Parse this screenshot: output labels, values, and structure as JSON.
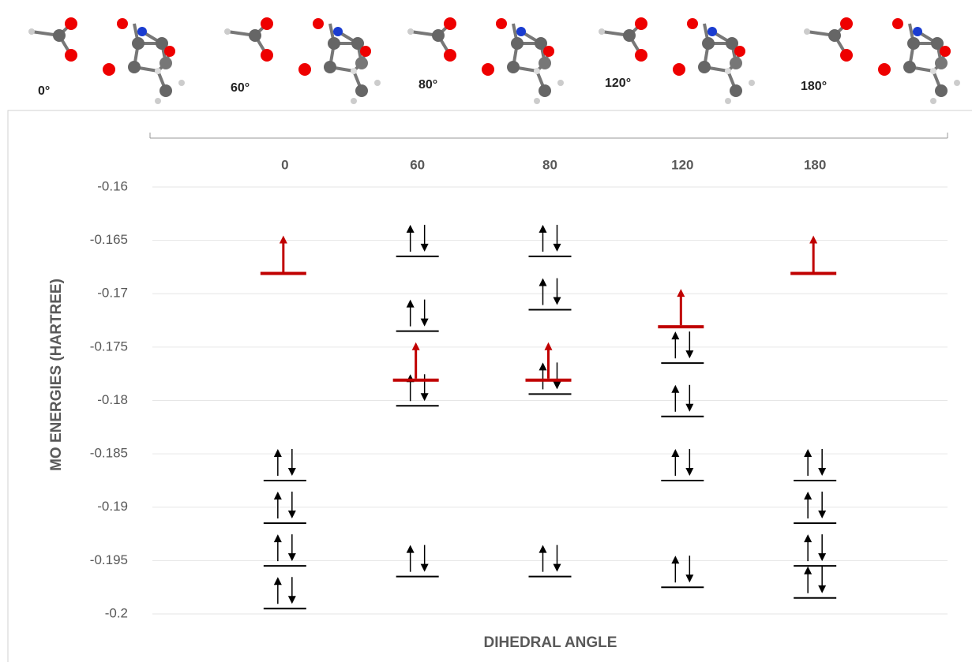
{
  "molecule_labels": [
    "0°",
    "60°",
    "80°",
    "120°",
    "180°"
  ],
  "chart_data": {
    "type": "energy-levels",
    "x_label": "DIHEDRAL ANGLE",
    "y_label": "MO ENERGIES (HARTREE)",
    "categories": [
      "0",
      "60",
      "80",
      "120",
      "180"
    ],
    "ylim": [
      -0.2,
      -0.16
    ],
    "yticks": [
      -0.16,
      -0.165,
      -0.17,
      -0.175,
      -0.18,
      -0.185,
      -0.19,
      -0.195,
      -0.2
    ],
    "grid": true,
    "series": [
      {
        "color": "#000000",
        "electrons": 2,
        "values": [
          -0.1875,
          -0.1665,
          -0.1665,
          -0.1765,
          -0.1875
        ]
      },
      {
        "color": "#000000",
        "electrons": 2,
        "values": [
          -0.1915,
          -0.1735,
          -0.1715,
          -0.1815,
          -0.1915
        ]
      },
      {
        "color": "#000000",
        "electrons": 2,
        "values": [
          -0.1955,
          -0.1805,
          -0.1794,
          -0.1875,
          -0.1955
        ]
      },
      {
        "color": "#000000",
        "electrons": 2,
        "values": [
          -0.1995,
          -0.1965,
          -0.1965,
          -0.1975,
          -0.1985
        ]
      },
      {
        "color": "#c00000",
        "electrons": 1,
        "values": [
          -0.1681,
          -0.1781,
          -0.1781,
          -0.1731,
          -0.1681
        ]
      }
    ]
  }
}
